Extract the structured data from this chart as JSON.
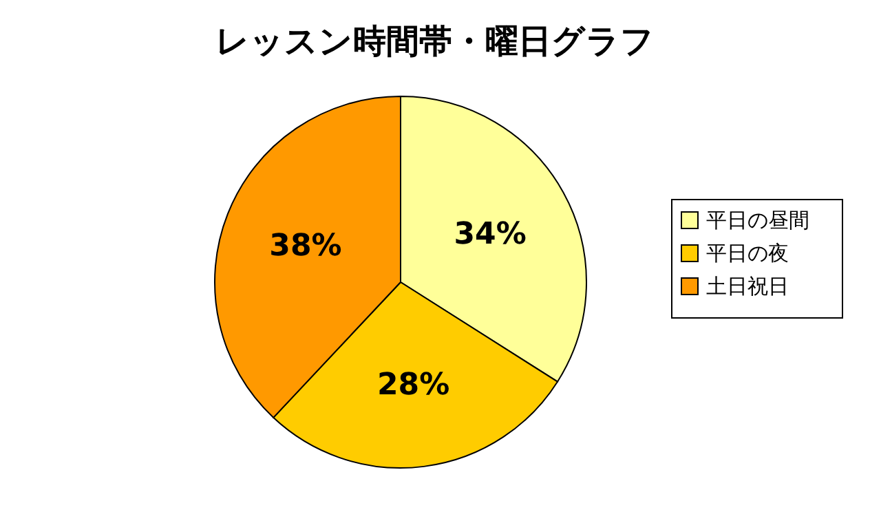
{
  "chart_data": {
    "type": "pie",
    "title": "レッスン時間帯・曜日グラフ",
    "categories": [
      "平日の昼間",
      "平日の夜",
      "土日祝日"
    ],
    "values": [
      34,
      28,
      38
    ],
    "colors": [
      "#ffff99",
      "#ffcc00",
      "#ff9900"
    ],
    "value_labels": [
      "34%",
      "28%",
      "38%"
    ],
    "legend": "right"
  }
}
